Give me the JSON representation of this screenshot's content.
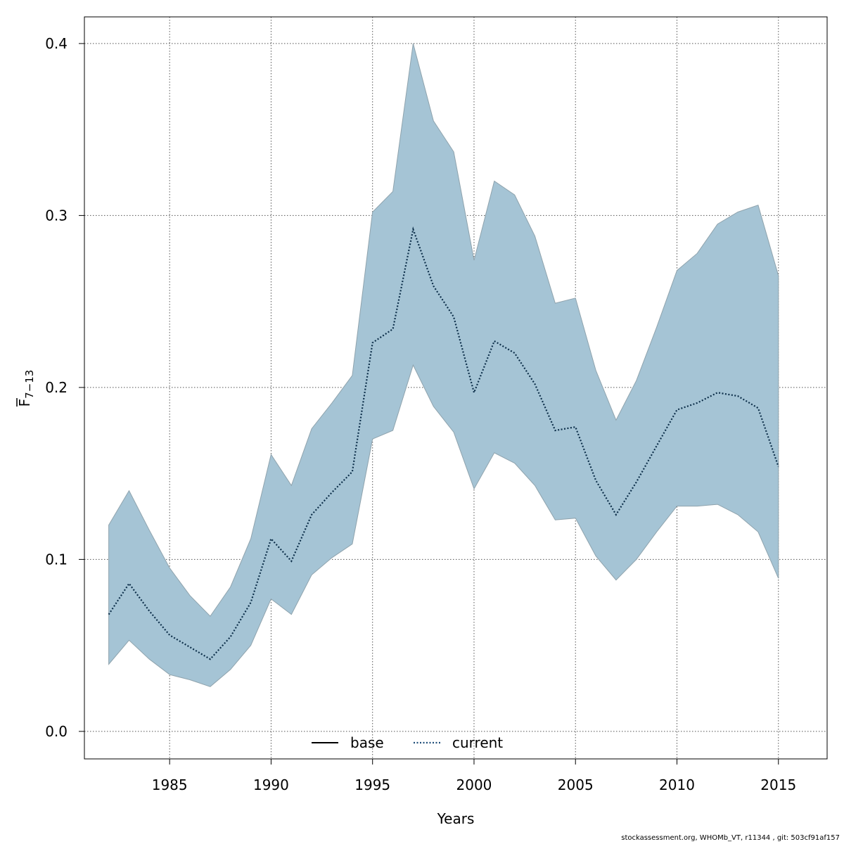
{
  "chart_data": {
    "type": "area",
    "xlabel": "Years",
    "ylabel_main": "F",
    "ylabel_sub": "7−13",
    "xlim": [
      1980.8,
      2017.4
    ],
    "ylim": [
      -0.016,
      0.4155
    ],
    "x_ticks": [
      1985,
      1990,
      1995,
      2000,
      2005,
      2010,
      2015
    ],
    "y_ticks": [
      0.0,
      0.1,
      0.2,
      0.3,
      0.4
    ],
    "y_tick_labels": [
      "0.0",
      "0.1",
      "0.2",
      "0.3",
      "0.4"
    ],
    "grid": true,
    "legend": {
      "placement": "bottom",
      "entries": [
        {
          "label": "base",
          "style": "solid",
          "color": "#000000"
        },
        {
          "label": "current",
          "style": "dotted",
          "color": "#1f4e79"
        }
      ]
    },
    "colors": {
      "band": "#a5c4d5",
      "band_edge": "#8fa3ad",
      "current_line": "#0d2f4a"
    },
    "x": [
      1982,
      1983,
      1984,
      1985,
      1986,
      1987,
      1988,
      1989,
      1990,
      1991,
      1992,
      1993,
      1994,
      1995,
      1996,
      1997,
      1998,
      1999,
      2000,
      2001,
      2002,
      2003,
      2004,
      2005,
      2006,
      2007,
      2008,
      2009,
      2010,
      2011,
      2012,
      2013,
      2014,
      2015
    ],
    "series": [
      {
        "name": "current",
        "role": "estimate",
        "values": [
          0.068,
          0.086,
          0.07,
          0.056,
          0.049,
          0.042,
          0.055,
          0.075,
          0.112,
          0.099,
          0.126,
          0.139,
          0.151,
          0.226,
          0.234,
          0.292,
          0.259,
          0.241,
          0.197,
          0.227,
          0.22,
          0.202,
          0.175,
          0.177,
          0.146,
          0.126,
          0.145,
          0.166,
          0.187,
          0.191,
          0.197,
          0.195,
          0.188,
          0.154
        ]
      },
      {
        "role": "upper",
        "values": [
          0.12,
          0.14,
          0.117,
          0.095,
          0.079,
          0.067,
          0.084,
          0.112,
          0.161,
          0.143,
          0.176,
          0.191,
          0.207,
          0.302,
          0.314,
          0.4,
          0.355,
          0.337,
          0.274,
          0.32,
          0.312,
          0.288,
          0.249,
          0.252,
          0.21,
          0.181,
          0.204,
          0.235,
          0.268,
          0.278,
          0.295,
          0.302,
          0.306,
          0.265
        ]
      },
      {
        "role": "lower",
        "values": [
          0.039,
          0.053,
          0.042,
          0.033,
          0.03,
          0.026,
          0.036,
          0.05,
          0.077,
          0.068,
          0.091,
          0.101,
          0.109,
          0.17,
          0.175,
          0.213,
          0.189,
          0.174,
          0.141,
          0.162,
          0.156,
          0.143,
          0.123,
          0.124,
          0.102,
          0.088,
          0.1,
          0.116,
          0.131,
          0.131,
          0.132,
          0.126,
          0.116,
          0.089
        ]
      }
    ]
  },
  "footer": "stockassessment.org, WHOMb_VT, r11344 , git: 503cf91af157"
}
